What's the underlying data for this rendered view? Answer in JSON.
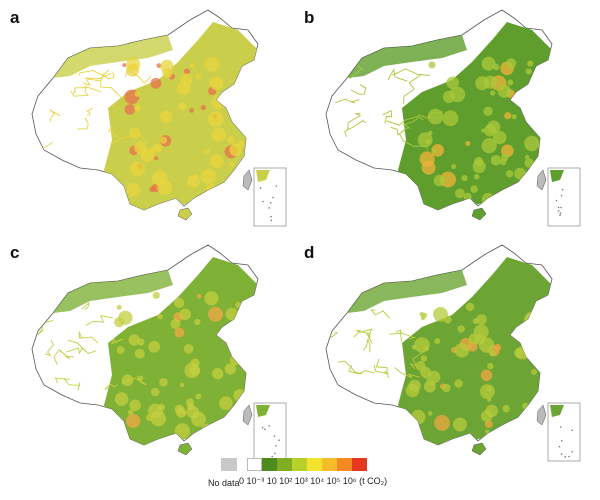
{
  "panels": [
    {
      "id": "a",
      "label": "a",
      "fill": "#c9cf4a",
      "hot": "#e9d43e",
      "red": "#e8704e",
      "blobs": 18
    },
    {
      "id": "b",
      "label": "b",
      "fill": "#5f9e2c",
      "hot": "#a9c83a",
      "red": "#f0b33a",
      "blobs": 10
    },
    {
      "id": "c",
      "label": "c",
      "fill": "#7fb137",
      "hot": "#c3cf3f",
      "red": "#f1aa45",
      "blobs": 8
    },
    {
      "id": "d",
      "label": "d",
      "fill": "#6ca533",
      "hot": "#b6cb3c",
      "red": "#f0a843",
      "blobs": 9
    }
  ],
  "legend": {
    "no_data_label": "No data",
    "no_data_color": "#c8c8c8",
    "colors": [
      "#ffffff",
      "#4f8a1f",
      "#7fae23",
      "#b9cf2b",
      "#f2e32f",
      "#f7bc2a",
      "#f48a22",
      "#e5391f"
    ],
    "tick_text": "0 10⁻³ 10 10² 10³ 10⁴ 10⁵ 10⁶ (t CO₂)"
  }
}
